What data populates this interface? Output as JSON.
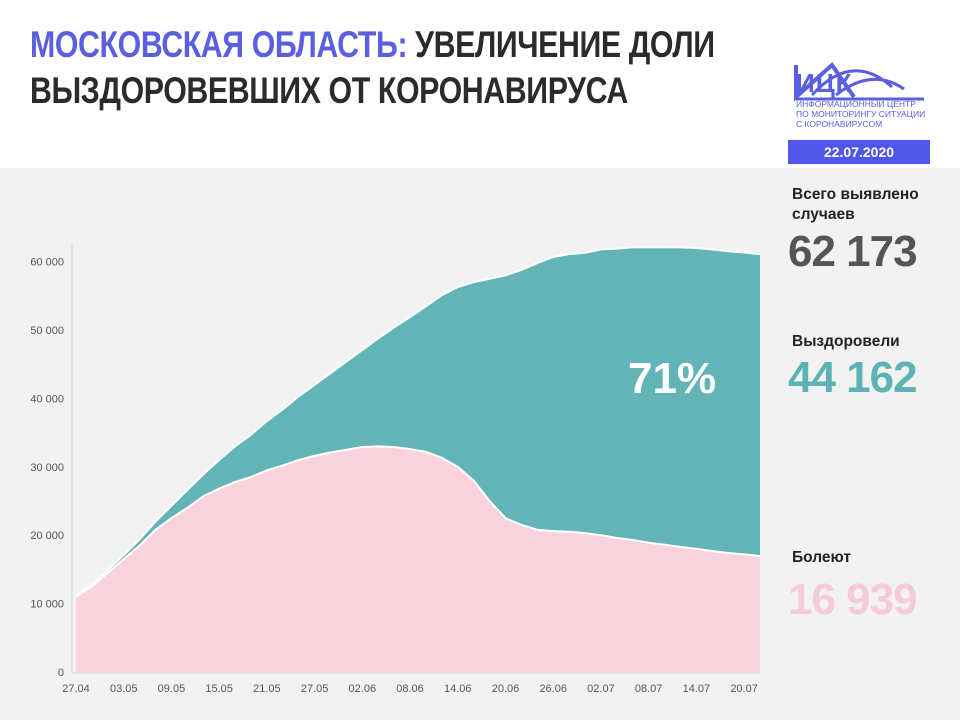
{
  "header": {
    "title_accent": "МОСКОВСКАЯ ОБЛАСТЬ:",
    "title_rest_line1": "УВЕЛИЧЕНИЕ ДОЛИ",
    "title_line2": "ВЫЗДОРОВЕВШИХ ОТ КОРОНАВИРУСА"
  },
  "logo": {
    "abbr": "ИЦК",
    "subtitle_lines": [
      "ИНФОРМАЦИОННЫЙ ЦЕНТР",
      "ПО МОНИТОРИНГУ СИТУАЦИИ",
      "С КОРОНАВИРУСОМ"
    ]
  },
  "date": "22.07.2020",
  "stats": {
    "total_label": "Всего выявлено случаев",
    "total_value": "62 173",
    "recovered_label": "Выздоровели",
    "recovered_value": "44 162",
    "active_label": "Болеют",
    "active_value": "16 939",
    "recovered_share": "71%"
  },
  "colors": {
    "accent": "#5a5fe0",
    "badge": "#4f56e8",
    "recovered": "#62b4b6",
    "active": "#f8d3de",
    "total_text": "#555555",
    "recovered_text": "#5cb3b4",
    "active_text": "#f6cbd7"
  },
  "chart_data": {
    "type": "area",
    "stacked": true,
    "title": "",
    "xlabel": "",
    "ylabel": "",
    "ylim": [
      0,
      62000
    ],
    "y_ticks": [
      0,
      10000,
      20000,
      30000,
      40000,
      50000,
      60000
    ],
    "y_tick_labels": [
      "0",
      "10 000",
      "20 000",
      "30 000",
      "40 000",
      "50 000",
      "60 000"
    ],
    "x_tick_labels": [
      "27.04",
      "03.05",
      "09.05",
      "15.05",
      "21.05",
      "27.05",
      "02.06",
      "08.06",
      "14.06",
      "20.06",
      "26.06",
      "02.07",
      "08.07",
      "14.07",
      "20.07"
    ],
    "x_day_range": [
      0,
      86
    ],
    "grid": false,
    "annotation": "71%",
    "series": [
      {
        "values_note": "active (sick)",
        "color": "#f8d3de",
        "x": [
          0,
          2,
          4,
          6,
          8,
          10,
          12,
          14,
          16,
          18,
          20,
          22,
          24,
          26,
          28,
          30,
          32,
          34,
          36,
          38,
          40,
          42,
          44,
          46,
          48,
          50,
          52,
          54,
          56,
          58,
          60,
          62,
          64,
          66,
          68,
          70,
          72,
          74,
          76,
          78,
          80,
          82,
          84,
          86
        ],
        "values": [
          11000,
          12500,
          14500,
          16500,
          18500,
          20800,
          22500,
          24000,
          25700,
          26800,
          27800,
          28500,
          29500,
          30200,
          31000,
          31600,
          32100,
          32500,
          32900,
          33000,
          32900,
          32600,
          32200,
          31300,
          30000,
          28000,
          25000,
          22500,
          21500,
          20800,
          20600,
          20500,
          20300,
          20000,
          19600,
          19300,
          18900,
          18600,
          18300,
          18000,
          17700,
          17400,
          17200,
          16939
        ]
      },
      {
        "values_note": "recovered",
        "color": "#62b4b6",
        "x": [
          0,
          2,
          4,
          6,
          8,
          10,
          12,
          14,
          16,
          18,
          20,
          22,
          24,
          26,
          28,
          30,
          32,
          34,
          36,
          38,
          40,
          42,
          44,
          46,
          48,
          50,
          52,
          54,
          56,
          58,
          60,
          62,
          64,
          66,
          68,
          70,
          72,
          74,
          76,
          78,
          80,
          82,
          84,
          86
        ],
        "values": [
          300,
          300,
          400,
          600,
          900,
          1200,
          1800,
          2600,
          3200,
          4200,
          5200,
          6200,
          7200,
          8200,
          9300,
          10400,
          11600,
          12900,
          14200,
          15800,
          17500,
          19300,
          21300,
          23800,
          26300,
          29000,
          32500,
          35500,
          37300,
          39000,
          40100,
          40600,
          41000,
          41800,
          42300,
          42800,
          43200,
          43500,
          43800,
          44000,
          44100,
          44130,
          44150,
          44162
        ]
      }
    ]
  }
}
